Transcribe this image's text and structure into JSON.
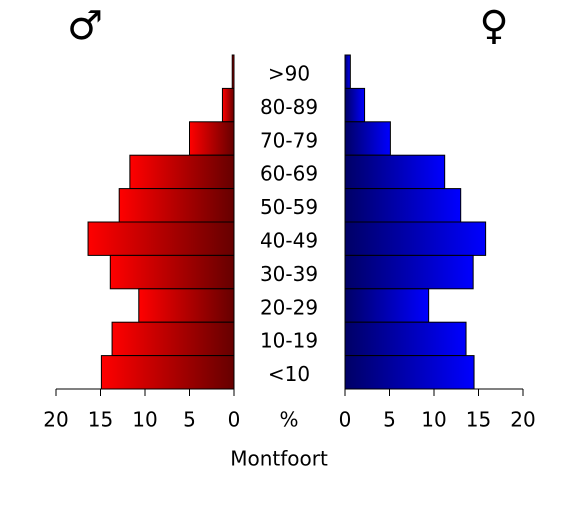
{
  "chart_data": {
    "type": "pyramid",
    "title": "Montfoort",
    "center_label": "%",
    "categories": [
      ">90",
      "80-89",
      "70-79",
      "60-69",
      "50-59",
      "40-49",
      "30-39",
      "20-29",
      "10-19",
      "<10"
    ],
    "series": [
      {
        "name": "♂",
        "color": "#ff0000",
        "values": [
          0.2,
          1.3,
          5.0,
          11.7,
          12.9,
          16.4,
          13.9,
          10.7,
          13.7,
          14.9
        ]
      },
      {
        "name": "♀",
        "color": "#0000ff",
        "values": [
          0.6,
          2.2,
          5.1,
          11.2,
          13.0,
          15.8,
          14.4,
          9.4,
          13.6,
          14.5
        ]
      }
    ],
    "xlim": [
      0,
      20
    ],
    "xticks": [
      0,
      5,
      10,
      15,
      20
    ]
  }
}
